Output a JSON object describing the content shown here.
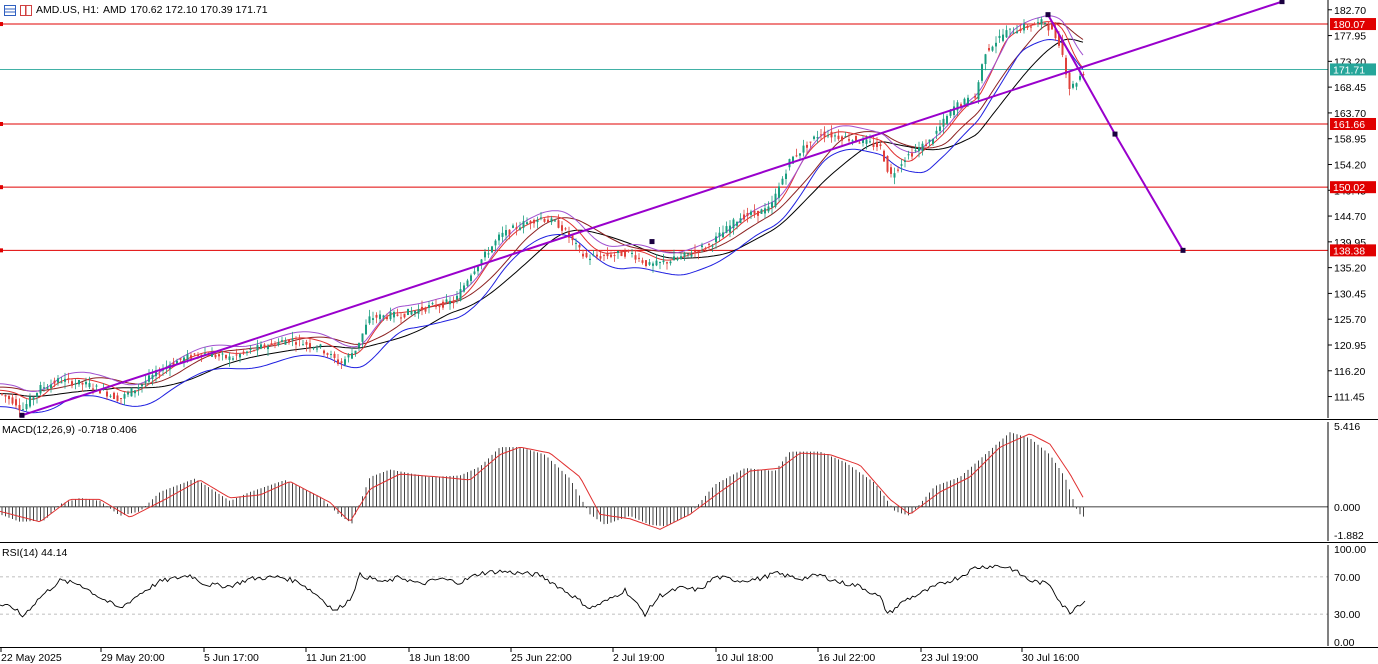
{
  "header": {
    "symbol": "AMD.US, H1:",
    "name": "AMD",
    "ohlc": "170.62 172.10 170.39 171.71"
  },
  "indicators": {
    "macd_label": "MACD(12,26,9) -0.718 0.406",
    "rsi_label": "RSI(14) 44.14"
  },
  "colors": {
    "up": "#1a9e80",
    "down": "#e0403a",
    "trendline": "#9900cc",
    "level": "#e00000",
    "current": "#26a69a",
    "ma_black": "#000000",
    "ma_brown": "#8b2020",
    "ma_red": "#e03030",
    "ma_blue": "#2020e0",
    "ma_purple": "#a050d0"
  },
  "chart_data": {
    "type": "candlestick",
    "timeframe": "H1",
    "ylim": [
      107.5,
      184.5
    ],
    "price_ticks": [
      "182.70",
      "177.95",
      "173.20",
      "168.45",
      "163.70",
      "158.95",
      "154.20",
      "149.45",
      "144.70",
      "139.95",
      "135.20",
      "130.45",
      "125.70",
      "120.95",
      "116.20",
      "111.45"
    ],
    "x_labels": [
      "22 May 2025",
      "29 May 20:00",
      "5 Jun 17:00",
      "11 Jun 21:00",
      "18 Jun 18:00",
      "25 Jun 22:00",
      "2 Jul 19:00",
      "10 Jul 18:00",
      "16 Jul 22:00",
      "23 Jul 19:00",
      "30 Jul 16:00"
    ],
    "current_price": 171.71,
    "levels": [
      180.07,
      161.66,
      150.02,
      138.38
    ],
    "price_path": [
      [
        0,
        112.0
      ],
      [
        15,
        110.5
      ],
      [
        22,
        109.0
      ],
      [
        40,
        113.0
      ],
      [
        60,
        114.5
      ],
      [
        90,
        113.5
      ],
      [
        120,
        111.0
      ],
      [
        140,
        113.5
      ],
      [
        170,
        117.5
      ],
      [
        200,
        119.5
      ],
      [
        230,
        118.5
      ],
      [
        260,
        120.5
      ],
      [
        290,
        122.0
      ],
      [
        320,
        120.5
      ],
      [
        340,
        117.5
      ],
      [
        355,
        120.0
      ],
      [
        370,
        126.0
      ],
      [
        400,
        126.5
      ],
      [
        430,
        128.0
      ],
      [
        455,
        129.0
      ],
      [
        470,
        134.0
      ],
      [
        500,
        141.0
      ],
      [
        520,
        143.0
      ],
      [
        540,
        144.5
      ],
      [
        560,
        143.0
      ],
      [
        585,
        137.0
      ],
      [
        610,
        137.5
      ],
      [
        630,
        138.0
      ],
      [
        650,
        135.5
      ],
      [
        680,
        137.0
      ],
      [
        710,
        139.5
      ],
      [
        740,
        144.5
      ],
      [
        770,
        146.0
      ],
      [
        790,
        155.0
      ],
      [
        820,
        160.0
      ],
      [
        850,
        159.0
      ],
      [
        880,
        157.5
      ],
      [
        890,
        152.0
      ],
      [
        905,
        155.5
      ],
      [
        930,
        158.5
      ],
      [
        955,
        165.0
      ],
      [
        975,
        166.5
      ],
      [
        985,
        175.0
      ],
      [
        1005,
        178.5
      ],
      [
        1025,
        179.5
      ],
      [
        1045,
        180.5
      ],
      [
        1060,
        176.5
      ],
      [
        1070,
        168.0
      ],
      [
        1085,
        171.71
      ]
    ],
    "trendline": {
      "points": [
        [
          "22 May 2025",
          108.0
        ],
        [
          "25 Jun 22:00",
          140.0
        ],
        [
          "30 Jul 16:00",
          168.6
        ],
        [
          "projection",
          184.2
        ]
      ]
    },
    "projection_path": [
      [
        1048,
        181.8
      ],
      [
        1115,
        159.8
      ],
      [
        1183,
        138.38
      ]
    ],
    "macd": {
      "ticks": [
        "5.416",
        "0.000",
        "-1.882"
      ],
      "ylim": [
        -1.882,
        5.416
      ],
      "histogram_path": [
        [
          0,
          -0.5
        ],
        [
          20,
          -1.0
        ],
        [
          45,
          -0.9
        ],
        [
          60,
          0.2
        ],
        [
          80,
          0.6
        ],
        [
          100,
          0.4
        ],
        [
          120,
          -0.6
        ],
        [
          140,
          -0.3
        ],
        [
          160,
          1.0
        ],
        [
          195,
          1.9
        ],
        [
          230,
          0.4
        ],
        [
          250,
          1.0
        ],
        [
          285,
          1.8
        ],
        [
          320,
          0.7
        ],
        [
          340,
          -0.6
        ],
        [
          352,
          -1.1
        ],
        [
          370,
          2.0
        ],
        [
          390,
          2.5
        ],
        [
          430,
          2.0
        ],
        [
          460,
          2.1
        ],
        [
          480,
          2.7
        ],
        [
          500,
          4.0
        ],
        [
          520,
          4.0
        ],
        [
          545,
          3.5
        ],
        [
          570,
          1.9
        ],
        [
          590,
          -0.5
        ],
        [
          605,
          -1.2
        ],
        [
          630,
          -0.6
        ],
        [
          650,
          -1.2
        ],
        [
          665,
          -1.3
        ],
        [
          690,
          -0.5
        ],
        [
          715,
          1.5
        ],
        [
          745,
          2.6
        ],
        [
          775,
          2.4
        ],
        [
          790,
          3.7
        ],
        [
          820,
          3.7
        ],
        [
          845,
          3.0
        ],
        [
          875,
          1.6
        ],
        [
          895,
          -0.3
        ],
        [
          910,
          -0.6
        ],
        [
          935,
          1.4
        ],
        [
          960,
          2.0
        ],
        [
          985,
          3.5
        ],
        [
          1010,
          5.0
        ],
        [
          1030,
          4.6
        ],
        [
          1050,
          3.5
        ],
        [
          1065,
          2.0
        ],
        [
          1078,
          -0.4
        ],
        [
          1085,
          -0.718
        ]
      ],
      "signal_path": [
        [
          0,
          -0.3
        ],
        [
          40,
          -1.0
        ],
        [
          70,
          0.5
        ],
        [
          100,
          0.5
        ],
        [
          130,
          -0.7
        ],
        [
          165,
          0.5
        ],
        [
          200,
          1.8
        ],
        [
          230,
          0.6
        ],
        [
          260,
          0.8
        ],
        [
          290,
          1.7
        ],
        [
          330,
          0.3
        ],
        [
          350,
          -1.0
        ],
        [
          370,
          1.2
        ],
        [
          400,
          2.2
        ],
        [
          440,
          2.0
        ],
        [
          470,
          1.8
        ],
        [
          500,
          3.5
        ],
        [
          520,
          4.0
        ],
        [
          550,
          3.6
        ],
        [
          580,
          2.0
        ],
        [
          600,
          -0.5
        ],
        [
          630,
          -0.8
        ],
        [
          660,
          -1.5
        ],
        [
          690,
          -0.5
        ],
        [
          720,
          1.0
        ],
        [
          750,
          2.4
        ],
        [
          780,
          2.6
        ],
        [
          800,
          3.6
        ],
        [
          830,
          3.5
        ],
        [
          860,
          2.8
        ],
        [
          890,
          0.5
        ],
        [
          910,
          -0.5
        ],
        [
          940,
          1.0
        ],
        [
          970,
          2.0
        ],
        [
          1000,
          4.0
        ],
        [
          1030,
          4.9
        ],
        [
          1050,
          4.2
        ],
        [
          1070,
          2.2
        ],
        [
          1085,
          0.406
        ]
      ]
    },
    "rsi": {
      "ticks": [
        "100.00",
        "70.00",
        "30.00",
        "0.00"
      ],
      "ylim": [
        0,
        100
      ],
      "levels": [
        70,
        30
      ],
      "path": [
        [
          0,
          40
        ],
        [
          15,
          36
        ],
        [
          22,
          27
        ],
        [
          40,
          48
        ],
        [
          60,
          66
        ],
        [
          80,
          62
        ],
        [
          100,
          48
        ],
        [
          120,
          36
        ],
        [
          140,
          52
        ],
        [
          160,
          65
        ],
        [
          190,
          72
        ],
        [
          205,
          62
        ],
        [
          230,
          60
        ],
        [
          250,
          68
        ],
        [
          280,
          70
        ],
        [
          300,
          64
        ],
        [
          320,
          48
        ],
        [
          335,
          33
        ],
        [
          350,
          46
        ],
        [
          360,
          72
        ],
        [
          385,
          64
        ],
        [
          400,
          70
        ],
        [
          420,
          62
        ],
        [
          440,
          68
        ],
        [
          460,
          64
        ],
        [
          480,
          74
        ],
        [
          500,
          76
        ],
        [
          520,
          74
        ],
        [
          540,
          72
        ],
        [
          555,
          62
        ],
        [
          575,
          48
        ],
        [
          590,
          36
        ],
        [
          610,
          46
        ],
        [
          625,
          56
        ],
        [
          645,
          30
        ],
        [
          660,
          50
        ],
        [
          680,
          58
        ],
        [
          700,
          56
        ],
        [
          715,
          70
        ],
        [
          740,
          66
        ],
        [
          760,
          68
        ],
        [
          775,
          74
        ],
        [
          800,
          68
        ],
        [
          820,
          72
        ],
        [
          840,
          64
        ],
        [
          860,
          60
        ],
        [
          880,
          48
        ],
        [
          888,
          30
        ],
        [
          905,
          45
        ],
        [
          920,
          52
        ],
        [
          940,
          62
        ],
        [
          960,
          70
        ],
        [
          975,
          80
        ],
        [
          995,
          82
        ],
        [
          1010,
          80
        ],
        [
          1030,
          66
        ],
        [
          1050,
          62
        ],
        [
          1062,
          40
        ],
        [
          1070,
          32
        ],
        [
          1078,
          40
        ],
        [
          1085,
          44.14
        ]
      ]
    }
  }
}
